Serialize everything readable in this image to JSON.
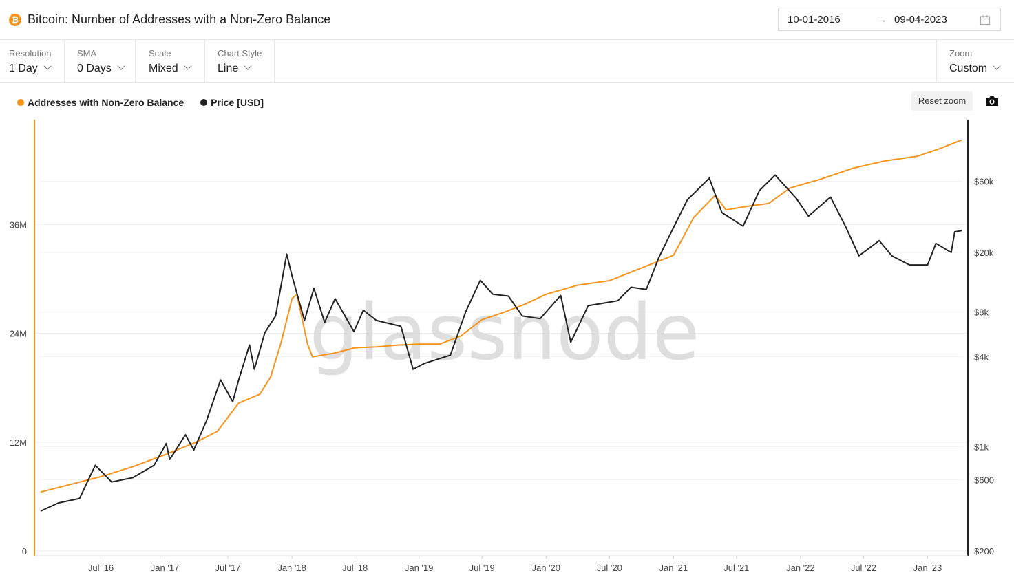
{
  "header": {
    "title": "Bitcoin: Number of Addresses with a Non-Zero Balance",
    "date_start": "10-01-2016",
    "date_arrow": "→",
    "date_end": "09-04-2023"
  },
  "controls": {
    "resolution": {
      "label": "Resolution",
      "value": "1 Day"
    },
    "sma": {
      "label": "SMA",
      "value": "0 Days"
    },
    "scale": {
      "label": "Scale",
      "value": "Mixed"
    },
    "chart_style": {
      "label": "Chart Style",
      "value": "Line"
    },
    "zoom": {
      "label": "Zoom",
      "value": "Custom"
    }
  },
  "legend": {
    "series1": "Addresses with Non-Zero Balance",
    "series2": "Price [USD]"
  },
  "reset_zoom": "Reset zoom",
  "watermark": "glassnode",
  "colors": {
    "addresses": "#f7931a",
    "price": "#222222",
    "accent": "#f7931a"
  },
  "chart_data": {
    "type": "line",
    "x_range": [
      "2016-01-10",
      "2023-04-09"
    ],
    "x_ticks": [
      "Jul '16",
      "Jan '17",
      "Jul '17",
      "Jan '18",
      "Jul '18",
      "Jan '19",
      "Jul '19",
      "Jan '20",
      "Jul '20",
      "Jan '21",
      "Jul '21",
      "Jan '22",
      "Jul '22",
      "Jan '23"
    ],
    "left_axis": {
      "scale": "linear",
      "ticks": [
        "0",
        "12M",
        "24M",
        "36M"
      ],
      "ylim": [
        0,
        48000000
      ]
    },
    "right_axis": {
      "scale": "log",
      "ticks": [
        "$200",
        "$600",
        "$1k",
        "$4k",
        "$8k",
        "$20k",
        "$60k"
      ]
    },
    "grid": true,
    "legend_position": "top-left",
    "series": [
      {
        "name": "Addresses with Non-Zero Balance",
        "axis": "left",
        "points": [
          [
            "2016-01-10",
            6.5
          ],
          [
            "2016-04-01",
            7.3
          ],
          [
            "2016-07-01",
            8.2
          ],
          [
            "2016-10-01",
            9.3
          ],
          [
            "2017-01-01",
            10.6
          ],
          [
            "2017-04-01",
            12.0
          ],
          [
            "2017-06-01",
            13.2
          ],
          [
            "2017-08-01",
            16.3
          ],
          [
            "2017-10-01",
            17.3
          ],
          [
            "2017-11-01",
            19.2
          ],
          [
            "2017-12-01",
            23.0
          ],
          [
            "2018-01-01",
            27.8
          ],
          [
            "2018-01-15",
            28.3
          ],
          [
            "2018-02-15",
            22.8
          ],
          [
            "2018-03-01",
            21.4
          ],
          [
            "2018-05-01",
            21.8
          ],
          [
            "2018-07-01",
            22.4
          ],
          [
            "2018-09-01",
            22.5
          ],
          [
            "2018-11-01",
            22.7
          ],
          [
            "2019-01-01",
            22.8
          ],
          [
            "2019-03-01",
            22.8
          ],
          [
            "2019-05-01",
            23.7
          ],
          [
            "2019-07-01",
            25.5
          ],
          [
            "2019-09-01",
            26.3
          ],
          [
            "2019-11-01",
            27.2
          ],
          [
            "2020-01-01",
            28.3
          ],
          [
            "2020-04-01",
            29.3
          ],
          [
            "2020-07-01",
            29.8
          ],
          [
            "2020-10-01",
            31.2
          ],
          [
            "2021-01-01",
            32.6
          ],
          [
            "2021-03-01",
            36.8
          ],
          [
            "2021-05-01",
            39.2
          ],
          [
            "2021-06-01",
            37.6
          ],
          [
            "2021-08-01",
            38.0
          ],
          [
            "2021-10-01",
            38.3
          ],
          [
            "2021-12-01",
            40.0
          ],
          [
            "2022-03-01",
            41.0
          ],
          [
            "2022-06-01",
            42.2
          ],
          [
            "2022-09-01",
            43.0
          ],
          [
            "2022-12-01",
            43.5
          ],
          [
            "2023-02-01",
            44.3
          ],
          [
            "2023-04-09",
            45.3
          ]
        ]
      },
      {
        "name": "Price [USD]",
        "axis": "right",
        "points": [
          [
            "2016-01-10",
            370
          ],
          [
            "2016-03-01",
            420
          ],
          [
            "2016-05-01",
            450
          ],
          [
            "2016-06-15",
            750
          ],
          [
            "2016-08-01",
            580
          ],
          [
            "2016-10-01",
            620
          ],
          [
            "2016-12-01",
            750
          ],
          [
            "2017-01-05",
            1050
          ],
          [
            "2017-01-15",
            820
          ],
          [
            "2017-03-01",
            1200
          ],
          [
            "2017-03-25",
            950
          ],
          [
            "2017-05-01",
            1500
          ],
          [
            "2017-06-10",
            2800
          ],
          [
            "2017-07-15",
            2000
          ],
          [
            "2017-08-01",
            2800
          ],
          [
            "2017-09-01",
            4800
          ],
          [
            "2017-09-15",
            3300
          ],
          [
            "2017-10-15",
            5800
          ],
          [
            "2017-11-15",
            7500
          ],
          [
            "2017-12-17",
            19500
          ],
          [
            "2018-01-01",
            14000
          ],
          [
            "2018-02-06",
            7000
          ],
          [
            "2018-03-05",
            11500
          ],
          [
            "2018-04-05",
            6800
          ],
          [
            "2018-05-05",
            9800
          ],
          [
            "2018-06-28",
            5900
          ],
          [
            "2018-07-25",
            8200
          ],
          [
            "2018-09-01",
            7000
          ],
          [
            "2018-11-10",
            6400
          ],
          [
            "2018-12-15",
            3300
          ],
          [
            "2019-01-15",
            3600
          ],
          [
            "2019-04-01",
            4100
          ],
          [
            "2019-05-15",
            8000
          ],
          [
            "2019-06-26",
            13000
          ],
          [
            "2019-08-01",
            10500
          ],
          [
            "2019-09-15",
            10200
          ],
          [
            "2019-10-25",
            7500
          ],
          [
            "2019-12-15",
            7200
          ],
          [
            "2020-02-12",
            10300
          ],
          [
            "2020-03-12",
            5000
          ],
          [
            "2020-05-01",
            8800
          ],
          [
            "2020-07-25",
            9500
          ],
          [
            "2020-09-01",
            11700
          ],
          [
            "2020-10-15",
            11300
          ],
          [
            "2020-11-20",
            18500
          ],
          [
            "2020-12-31",
            29000
          ],
          [
            "2021-02-10",
            45000
          ],
          [
            "2021-04-14",
            63000
          ],
          [
            "2021-05-20",
            37000
          ],
          [
            "2021-07-20",
            30000
          ],
          [
            "2021-09-05",
            52000
          ],
          [
            "2021-10-20",
            66000
          ],
          [
            "2021-12-20",
            46000
          ],
          [
            "2022-01-24",
            35000
          ],
          [
            "2022-03-28",
            47000
          ],
          [
            "2022-05-10",
            30000
          ],
          [
            "2022-06-18",
            19000
          ],
          [
            "2022-08-15",
            24000
          ],
          [
            "2022-09-20",
            19000
          ],
          [
            "2022-11-10",
            16500
          ],
          [
            "2023-01-01",
            16500
          ],
          [
            "2023-01-25",
            23000
          ],
          [
            "2023-03-10",
            20000
          ],
          [
            "2023-03-20",
            27500
          ],
          [
            "2023-04-09",
            28000
          ]
        ]
      }
    ]
  }
}
